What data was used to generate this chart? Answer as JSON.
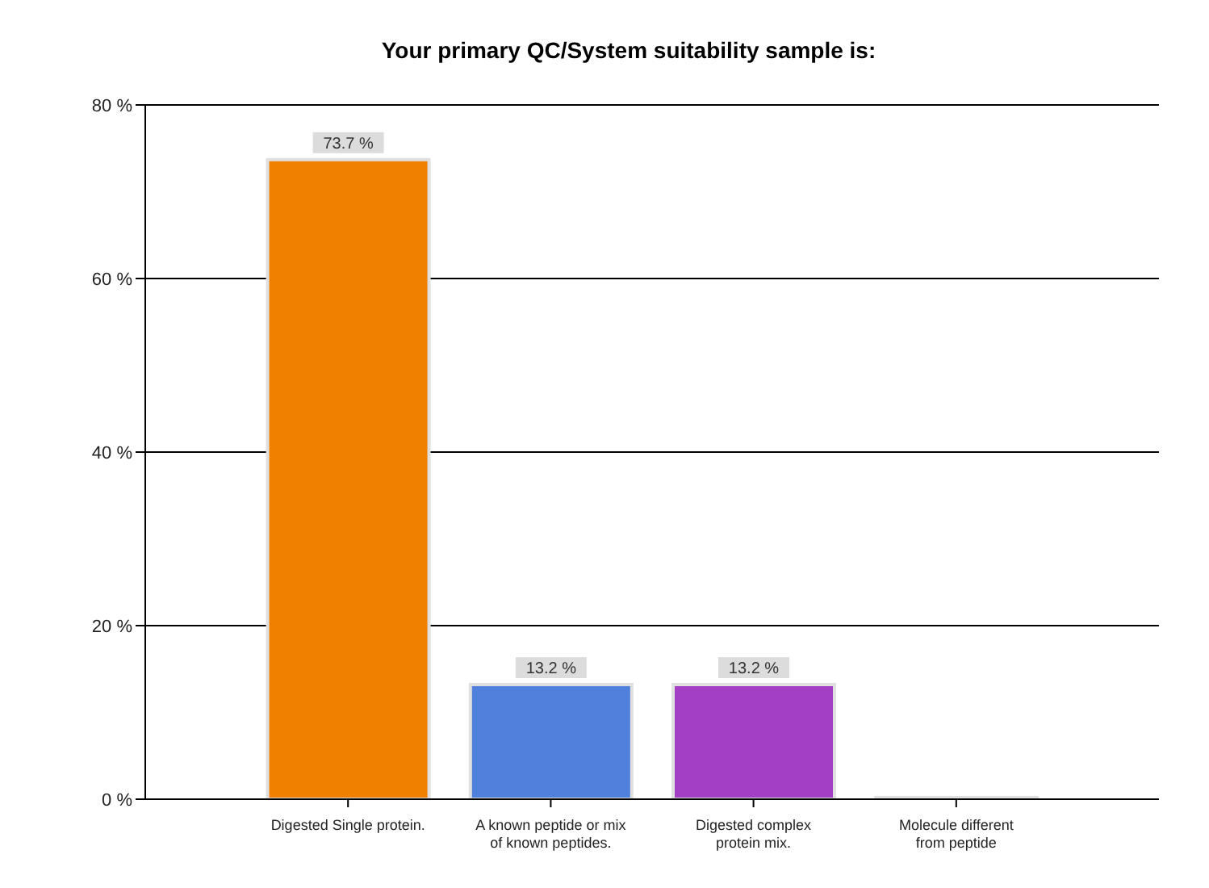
{
  "chart_data": {
    "type": "bar",
    "title": "Your primary QC/System suitability sample is:",
    "categories": [
      "Digested Single protein.",
      "A known peptide or mix of known peptides.",
      "Digested complex protein mix.",
      "Molecule different from peptide"
    ],
    "values": [
      73.7,
      13.2,
      13.2,
      0
    ],
    "colors": [
      "#f08000",
      "#4f80dc",
      "#a23fc2",
      "#9a9a9a"
    ],
    "value_labels": [
      "73.7 %",
      "13.2 %",
      "13.2 %",
      null
    ],
    "ylim": [
      0,
      80
    ],
    "yticks": [
      {
        "value": 0,
        "label": "0 %"
      },
      {
        "value": 20,
        "label": "20 %"
      },
      {
        "value": 40,
        "label": "40 %"
      },
      {
        "value": 60,
        "label": "60 %"
      },
      {
        "value": 80,
        "label": "80 %"
      }
    ],
    "grid": "y"
  }
}
